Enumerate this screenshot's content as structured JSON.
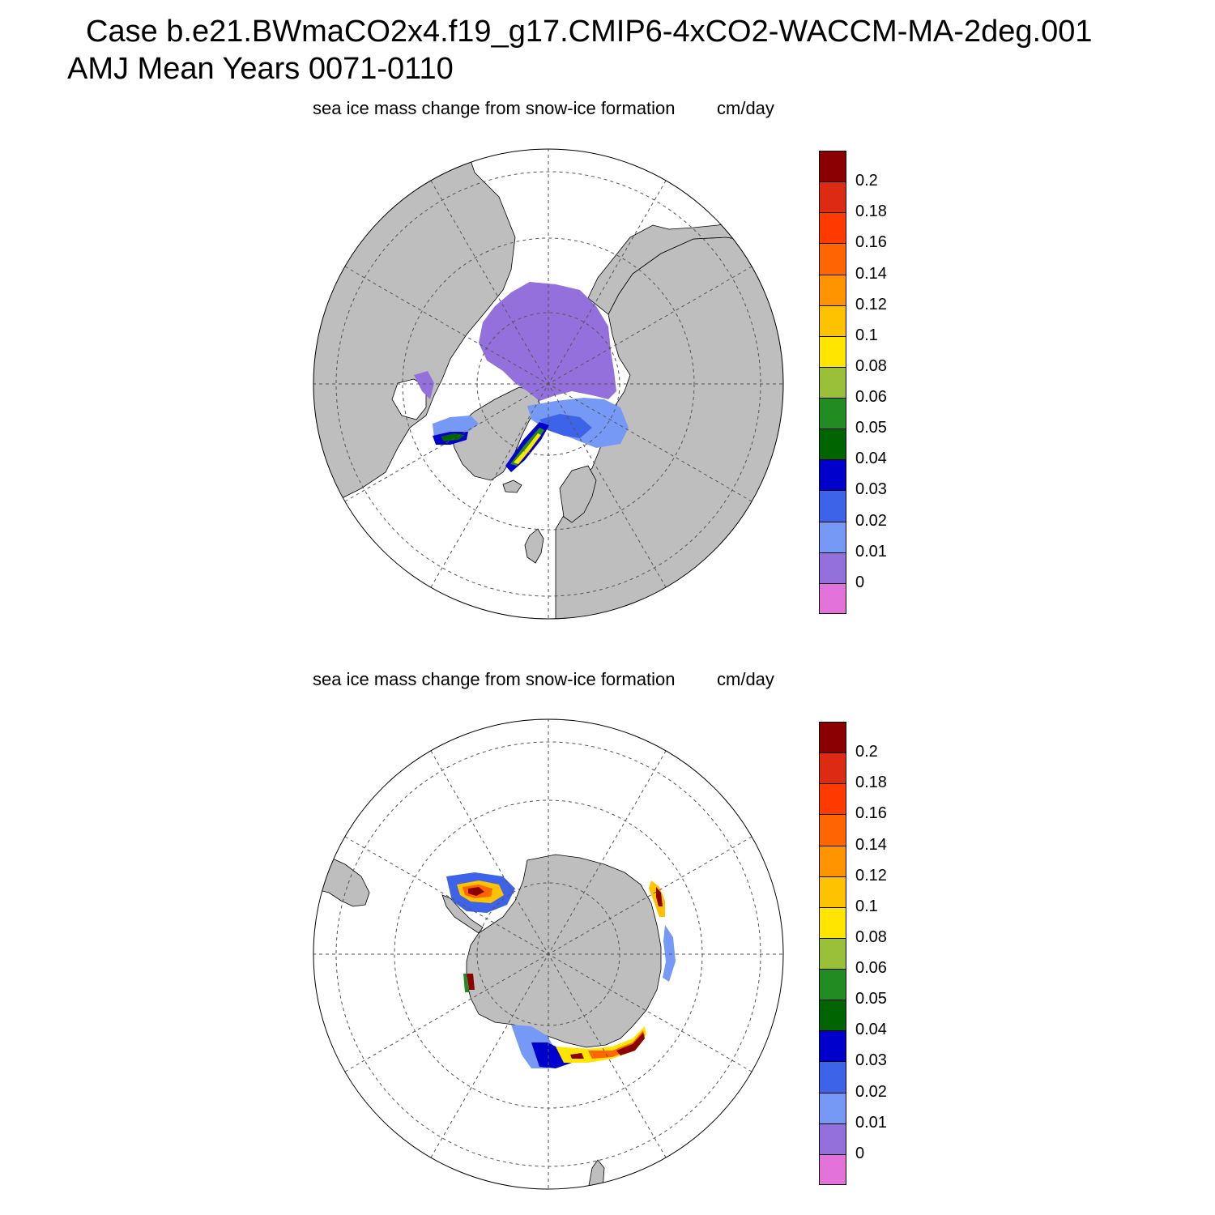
{
  "header": {
    "line1": "Case b.e21.BWmaCO2x4.f19_g17.CMIP6-4xCO2-WACCM-MA-2deg.001",
    "line2": "AMJ Mean   Years 0071-0110"
  },
  "panels": [
    {
      "title": "sea ice mass change from snow-ice formation",
      "units": "cm/day",
      "hemisphere": "north"
    },
    {
      "title": "sea ice mass change from snow-ice formation",
      "units": "cm/day",
      "hemisphere": "south"
    }
  ],
  "colorbar": {
    "labels": [
      "0.2",
      "0.18",
      "0.16",
      "0.14",
      "0.12",
      "0.1",
      "0.08",
      "0.06",
      "0.05",
      "0.04",
      "0.03",
      "0.02",
      "0.01",
      "0"
    ],
    "colors": [
      "#8b0000",
      "#dd2a12",
      "#ff3a00",
      "#ff6500",
      "#ff9300",
      "#ffc200",
      "#ffe500",
      "#9ac03a",
      "#228b22",
      "#006400",
      "#0000cd",
      "#3d63e8",
      "#7799f6",
      "#9370db",
      "#e373db"
    ]
  },
  "colors": {
    "land": "#bebebe",
    "ocean": "#ffffff",
    "grid": "#555555"
  }
}
